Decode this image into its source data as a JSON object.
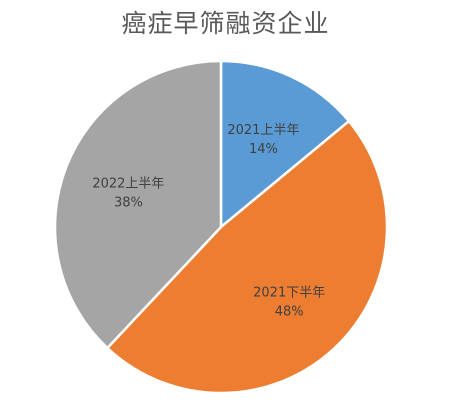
{
  "chart_data": {
    "type": "pie",
    "title": "癌症早筛融资企业",
    "slices": [
      {
        "name": "2021上半年",
        "value": 14,
        "label": "14%",
        "color": "#5b9bd5"
      },
      {
        "name": "2021下半年",
        "value": 48,
        "label": "48%",
        "color": "#ed7d31"
      },
      {
        "name": "2022上半年",
        "value": 38,
        "label": "38%",
        "color": "#a5a5a5"
      }
    ],
    "start_angle_deg": 0,
    "direction": "clockwise",
    "legend": "none"
  }
}
